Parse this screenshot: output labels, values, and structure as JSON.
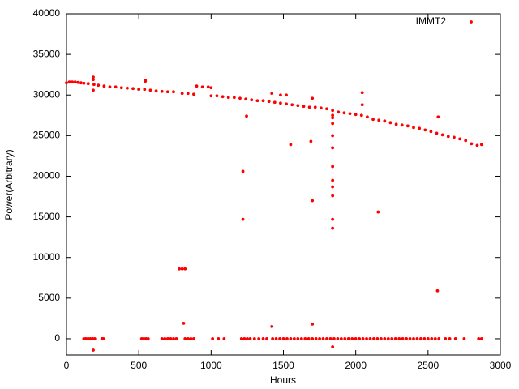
{
  "chart_data": {
    "type": "scatter",
    "xlabel": "Hours",
    "ylabel": "Power(Arbitrary)",
    "xlim": [
      0,
      3000
    ],
    "xticks": [
      0,
      500,
      1000,
      1500,
      2000,
      2500,
      3000
    ],
    "ylim": [
      -2000,
      40000
    ],
    "yticks": [
      0,
      5000,
      10000,
      15000,
      20000,
      25000,
      30000,
      35000,
      40000
    ],
    "legend": "top-right",
    "series": [
      {
        "name": "IMMT2",
        "color": "#ff0000",
        "x": [
          0,
          20,
          40,
          60,
          80,
          100,
          120,
          150,
          190,
          220,
          260,
          300,
          340,
          380,
          420,
          460,
          500,
          540,
          580,
          620,
          660,
          700,
          740,
          800,
          840,
          880,
          900,
          940,
          980,
          1000,
          1040,
          1080,
          1120,
          1160,
          1200,
          1240,
          1280,
          1320,
          1360,
          1400,
          1440,
          1480,
          1520,
          1560,
          1600,
          1640,
          1680,
          1720,
          1760,
          1800,
          1840,
          1880,
          1920,
          1960,
          2000,
          2040,
          2080,
          2120,
          2160,
          2200,
          2240,
          2280,
          2320,
          2360,
          2400,
          2440,
          2480,
          2520,
          2560,
          2600,
          2640,
          2680,
          2720,
          2760,
          2800,
          2840,
          2870,
          120,
          135,
          150,
          165,
          180,
          195,
          245,
          255,
          520,
          535,
          550,
          565,
          660,
          680,
          700,
          720,
          740,
          760,
          820,
          840,
          860,
          880,
          1010,
          1050,
          1090,
          1210,
          1230,
          1250,
          1270,
          1300,
          1330,
          1360,
          1385,
          1425,
          1450,
          1475,
          1500,
          1525,
          1550,
          1575,
          1600,
          1625,
          1650,
          1675,
          1700,
          1725,
          1750,
          1775,
          1800,
          1825,
          1850,
          1875,
          1900,
          1925,
          1950,
          1975,
          2000,
          2025,
          2050,
          2075,
          2100,
          2125,
          2150,
          2175,
          2200,
          2225,
          2250,
          2275,
          2300,
          2325,
          2350,
          2375,
          2400,
          2425,
          2450,
          2475,
          2500,
          2525,
          2550,
          2575,
          2620,
          2650,
          2690,
          2750,
          2850,
          2870,
          185,
          185,
          185,
          185,
          545,
          545,
          780,
          800,
          820,
          810,
          1220,
          1220,
          1245,
          1420,
          1420,
          1480,
          1520,
          1550,
          1690,
          1700,
          1700,
          1700,
          1840,
          1840,
          1840,
          1840,
          1840,
          1840,
          1840,
          1840,
          1840,
          1840,
          1840,
          2045,
          2045,
          2155,
          2565,
          2570,
          1000,
          1840
        ],
        "values": [
          31500,
          31600,
          31600,
          31600,
          31550,
          31500,
          31450,
          31400,
          31300,
          31200,
          31100,
          31000,
          31000,
          30900,
          30850,
          30800,
          30700,
          30700,
          30600,
          30500,
          30450,
          30400,
          30400,
          30200,
          30200,
          30100,
          31100,
          31000,
          31000,
          29900,
          29900,
          29800,
          29700,
          29700,
          29600,
          29500,
          29400,
          29300,
          29300,
          29200,
          29100,
          29000,
          28900,
          28800,
          28700,
          28600,
          28500,
          28500,
          28400,
          28300,
          28100,
          27900,
          27800,
          27700,
          27600,
          27500,
          27300,
          27000,
          26900,
          26800,
          26600,
          26400,
          26300,
          26200,
          26000,
          25900,
          25700,
          25500,
          25300,
          25100,
          24900,
          24800,
          24600,
          24400,
          24000,
          23800,
          23900,
          0,
          0,
          0,
          0,
          0,
          0,
          0,
          0,
          0,
          0,
          0,
          0,
          0,
          0,
          0,
          0,
          0,
          0,
          0,
          0,
          0,
          0,
          0,
          0,
          0,
          0,
          0,
          0,
          0,
          0,
          0,
          0,
          0,
          0,
          0,
          0,
          0,
          0,
          0,
          0,
          0,
          0,
          0,
          0,
          0,
          0,
          0,
          0,
          0,
          0,
          0,
          0,
          0,
          0,
          0,
          0,
          0,
          0,
          0,
          0,
          0,
          0,
          0,
          0,
          0,
          0,
          0,
          0,
          0,
          0,
          0,
          0,
          0,
          0,
          0,
          0,
          0,
          0,
          0,
          0,
          0,
          0,
          0,
          0,
          0,
          0,
          32200,
          31900,
          30600,
          -1400,
          31800,
          31700,
          8600,
          8600,
          8600,
          1900,
          20600,
          14700,
          27400,
          1500,
          30200,
          30000,
          30000,
          23900,
          24300,
          17000,
          1800,
          29600,
          27500,
          26500,
          25000,
          23500,
          21200,
          19500,
          18700,
          17600,
          14700,
          13600,
          -1000,
          30300,
          28800,
          15600,
          5900,
          27300,
          30900,
          27200
        ]
      }
    ]
  }
}
